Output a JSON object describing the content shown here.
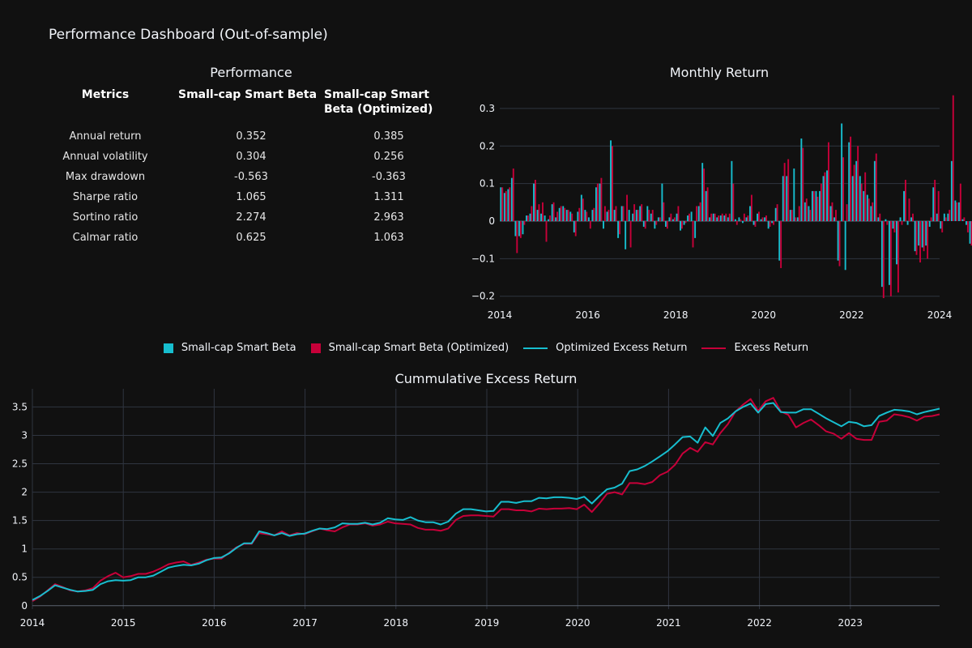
{
  "header": {
    "title": "Performance Dashboard (Out-of-sample)"
  },
  "colors": {
    "base": "#17becf",
    "optimized": "#c70039",
    "background": "#111111",
    "grid": "#2f3540"
  },
  "table": {
    "title": "Performance",
    "headers": [
      "Metrics",
      "Small-cap Smart Beta",
      "Small-cap Smart Beta (Optimized)"
    ],
    "rows": [
      [
        "Annual return",
        "0.352",
        "0.385"
      ],
      [
        "Annual volatility",
        "0.304",
        "0.256"
      ],
      [
        "Max drawdown",
        "-0.563",
        "-0.363"
      ],
      [
        "Sharpe ratio",
        "1.065",
        "1.311"
      ],
      [
        "Sortino ratio",
        "2.274",
        "2.963"
      ],
      [
        "Calmar ratio",
        "0.625",
        "1.063"
      ]
    ]
  },
  "legend": [
    {
      "label": "Small-cap Smart Beta",
      "kind": "bar",
      "color": "#17becf"
    },
    {
      "label": "Small-cap Smart Beta (Optimized)",
      "kind": "bar",
      "color": "#c70039"
    },
    {
      "label": "Optimized Excess Return",
      "kind": "line",
      "color": "#17becf"
    },
    {
      "label": "Excess Return",
      "kind": "line",
      "color": "#c70039"
    }
  ],
  "chart_data": [
    {
      "type": "bar",
      "title": "Monthly Return",
      "start": "2014-01",
      "xticks": [
        "2014",
        "2016",
        "2018",
        "2020",
        "2022",
        "2024"
      ],
      "yticks": [
        "0.3",
        "0.2",
        "0.1",
        "0",
        "−0.1",
        "−0.2"
      ],
      "ylim": [
        -0.22,
        0.33
      ],
      "series": [
        {
          "name": "Small-cap Smart Beta",
          "values": [
            0.09,
            0.075,
            0.085,
            0.115,
            -0.04,
            -0.04,
            -0.035,
            0.015,
            0.02,
            0.1,
            0.03,
            0.02,
            0.015,
            0.005,
            0.045,
            0.01,
            0.035,
            0.04,
            0.03,
            0.025,
            -0.03,
            0.025,
            0.07,
            0.03,
            0.01,
            0.03,
            0.09,
            0.1,
            -0.02,
            0.025,
            0.215,
            0.03,
            -0.045,
            0.04,
            -0.075,
            0.03,
            0.02,
            0.03,
            0.04,
            -0.015,
            0.04,
            0.02,
            -0.02,
            0.01,
            0.1,
            -0.015,
            0.01,
            0.005,
            0.02,
            -0.025,
            -0.01,
            0.015,
            0.025,
            -0.045,
            0.04,
            0.155,
            0.08,
            0.01,
            0.02,
            0.01,
            0.015,
            0.015,
            0.01,
            0.16,
            0.005,
            0.01,
            -0.005,
            0.01,
            0.04,
            -0.01,
            0.02,
            0.005,
            0.01,
            -0.02,
            -0.005,
            0.035,
            -0.105,
            0.12,
            0.12,
            0.03,
            0.14,
            0.01,
            0.22,
            0.05,
            0.04,
            0.08,
            0.08,
            0.08,
            0.12,
            0.135,
            0.04,
            0.01,
            -0.105,
            0.26,
            -0.13,
            0.21,
            0.12,
            0.16,
            0.12,
            0.08,
            0.07,
            0.04,
            0.16,
            0.01,
            -0.175,
            0.005,
            -0.17,
            -0.02,
            -0.115,
            0.01,
            0.08,
            -0.01,
            0.01,
            -0.08,
            -0.065,
            -0.07,
            -0.065,
            -0.015,
            0.09,
            0.02,
            -0.02,
            0.02,
            0.02,
            0.16,
            0.055,
            0.05,
            0.005,
            -0.01,
            -0.06,
            0.06,
            0.035,
            0.02
          ]
        },
        {
          "name": "Small-cap Smart Beta (Optimized)",
          "values": [
            0.09,
            0.08,
            0.09,
            0.14,
            -0.085,
            -0.045,
            -0.01,
            0.015,
            0.04,
            0.11,
            0.045,
            0.05,
            -0.055,
            0.015,
            0.05,
            0.025,
            0.04,
            0.035,
            0.03,
            0.02,
            -0.04,
            0.035,
            0.06,
            0.025,
            -0.02,
            0.035,
            0.1,
            0.115,
            0.04,
            0.03,
            0.2,
            0.04,
            -0.035,
            0.04,
            0.07,
            -0.07,
            0.045,
            0.03,
            0.045,
            -0.02,
            0.03,
            0.03,
            -0.01,
            0.01,
            0.05,
            -0.02,
            0.02,
            0.01,
            0.04,
            -0.02,
            -0.005,
            0.02,
            -0.07,
            0.04,
            0.05,
            0.14,
            0.09,
            0.02,
            0.02,
            0.015,
            0.02,
            0.02,
            0.02,
            0.1,
            -0.01,
            0.005,
            0.02,
            0.015,
            0.07,
            -0.015,
            0.025,
            0.01,
            0.015,
            -0.015,
            -0.01,
            0.045,
            -0.125,
            0.155,
            0.165,
            0.03,
            0.01,
            0.04,
            0.195,
            0.06,
            0.03,
            0.08,
            0.065,
            0.1,
            0.13,
            0.21,
            0.05,
            0.03,
            -0.12,
            0.17,
            0.045,
            0.225,
            0.15,
            0.2,
            0.1,
            0.13,
            0.06,
            0.05,
            0.18,
            0.02,
            -0.205,
            -0.01,
            -0.2,
            -0.03,
            -0.19,
            -0.01,
            0.11,
            0.06,
            0.02,
            -0.09,
            -0.11,
            -0.08,
            -0.1,
            0.01,
            0.11,
            0.08,
            -0.03,
            0.01,
            0.03,
            0.335,
            0.05,
            0.1,
            0.01,
            -0.03,
            -0.065,
            0.05,
            0.035,
            0.025
          ]
        }
      ]
    },
    {
      "type": "line",
      "title": "Cummulative Excess Return",
      "start": "2014-01",
      "xticks": [
        "2014",
        "2015",
        "2016",
        "2017",
        "2018",
        "2019",
        "2020",
        "2021",
        "2022",
        "2023"
      ],
      "yticks": [
        "0",
        "0.5",
        "1",
        "1.5",
        "2",
        "2.5",
        "3",
        "3.5"
      ],
      "ylim": [
        -0.06,
        3.82
      ],
      "series": [
        {
          "name": "Optimized Excess Return",
          "values": [
            0.1,
            0.17,
            0.26,
            0.36,
            0.32,
            0.28,
            0.25,
            0.26,
            0.28,
            0.38,
            0.43,
            0.45,
            0.44,
            0.45,
            0.5,
            0.5,
            0.53,
            0.6,
            0.67,
            0.7,
            0.72,
            0.71,
            0.74,
            0.8,
            0.84,
            0.85,
            0.92,
            1.02,
            1.1,
            1.1,
            1.31,
            1.28,
            1.24,
            1.28,
            1.23,
            1.26,
            1.27,
            1.32,
            1.36,
            1.35,
            1.38,
            1.45,
            1.44,
            1.44,
            1.46,
            1.43,
            1.46,
            1.54,
            1.52,
            1.51,
            1.56,
            1.5,
            1.47,
            1.47,
            1.43,
            1.48,
            1.62,
            1.7,
            1.7,
            1.68,
            1.66,
            1.67,
            1.83,
            1.83,
            1.81,
            1.84,
            1.84,
            1.9,
            1.89,
            1.91,
            1.91,
            1.9,
            1.88,
            1.92,
            1.8,
            1.93,
            2.05,
            2.08,
            2.15,
            2.37,
            2.4,
            2.46,
            2.54,
            2.63,
            2.72,
            2.84,
            2.97,
            2.98,
            2.87,
            3.14,
            2.99,
            3.22,
            3.3,
            3.42,
            3.5,
            3.56,
            3.4,
            3.55,
            3.57,
            3.41,
            3.4,
            3.4,
            3.46,
            3.46,
            3.38,
            3.3,
            3.23,
            3.16,
            3.24,
            3.22,
            3.16,
            3.18,
            3.34,
            3.4,
            3.45,
            3.44,
            3.42,
            3.37,
            3.41,
            3.44,
            3.47
          ]
        },
        {
          "name": "Excess Return",
          "values": [
            0.08,
            0.16,
            0.27,
            0.38,
            0.33,
            0.27,
            0.25,
            0.27,
            0.31,
            0.44,
            0.52,
            0.58,
            0.5,
            0.52,
            0.56,
            0.56,
            0.6,
            0.66,
            0.73,
            0.76,
            0.78,
            0.72,
            0.76,
            0.81,
            0.83,
            0.83,
            0.93,
            1.03,
            1.09,
            1.09,
            1.28,
            1.26,
            1.24,
            1.31,
            1.24,
            1.28,
            1.26,
            1.31,
            1.36,
            1.33,
            1.31,
            1.38,
            1.43,
            1.43,
            1.45,
            1.41,
            1.43,
            1.48,
            1.45,
            1.44,
            1.43,
            1.37,
            1.34,
            1.34,
            1.32,
            1.36,
            1.51,
            1.58,
            1.59,
            1.59,
            1.58,
            1.57,
            1.7,
            1.7,
            1.68,
            1.68,
            1.66,
            1.71,
            1.7,
            1.71,
            1.71,
            1.72,
            1.7,
            1.78,
            1.65,
            1.8,
            1.97,
            2.0,
            1.96,
            2.16,
            2.16,
            2.14,
            2.18,
            2.3,
            2.36,
            2.48,
            2.68,
            2.78,
            2.71,
            2.88,
            2.84,
            3.04,
            3.2,
            3.42,
            3.54,
            3.64,
            3.43,
            3.6,
            3.66,
            3.42,
            3.36,
            3.14,
            3.22,
            3.28,
            3.18,
            3.07,
            3.03,
            2.94,
            3.04,
            2.94,
            2.92,
            2.92,
            3.24,
            3.26,
            3.37,
            3.35,
            3.32,
            3.26,
            3.33,
            3.34,
            3.37
          ]
        }
      ]
    }
  ]
}
